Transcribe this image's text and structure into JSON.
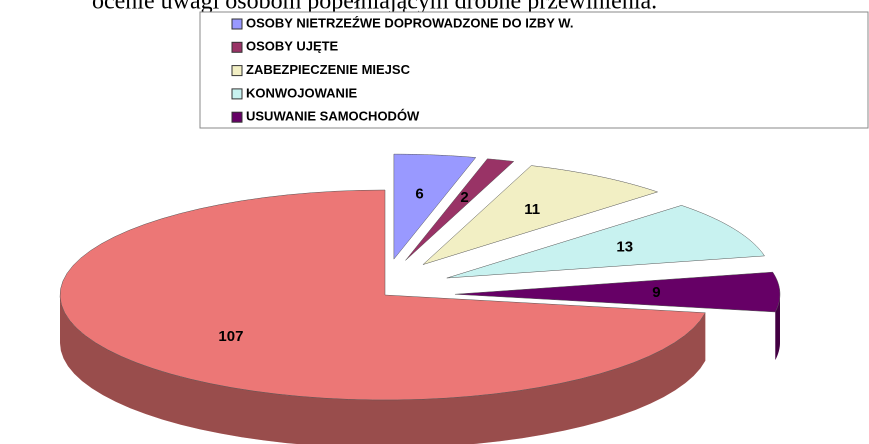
{
  "caption": "ocenie uwagi osobom popełniającym drobne przewinienia.",
  "chart_data": {
    "type": "pie",
    "categories": [
      "OSOBY NIETRZEŹWE DOPROWADZONE DO IZBY W.",
      "OSOBY UJĘTE",
      "ZABEZPIECZENIE MIEJSC",
      "KONWOJOWANIE",
      "USUWANIE SAMOCHODÓW",
      null
    ],
    "values": [
      6,
      2,
      11,
      13,
      9,
      107
    ],
    "colors": [
      "#9999ff",
      "#993366",
      "#f2efc4",
      "#c8f2f0",
      "#660066",
      "#ec7776"
    ],
    "legend": "top"
  }
}
